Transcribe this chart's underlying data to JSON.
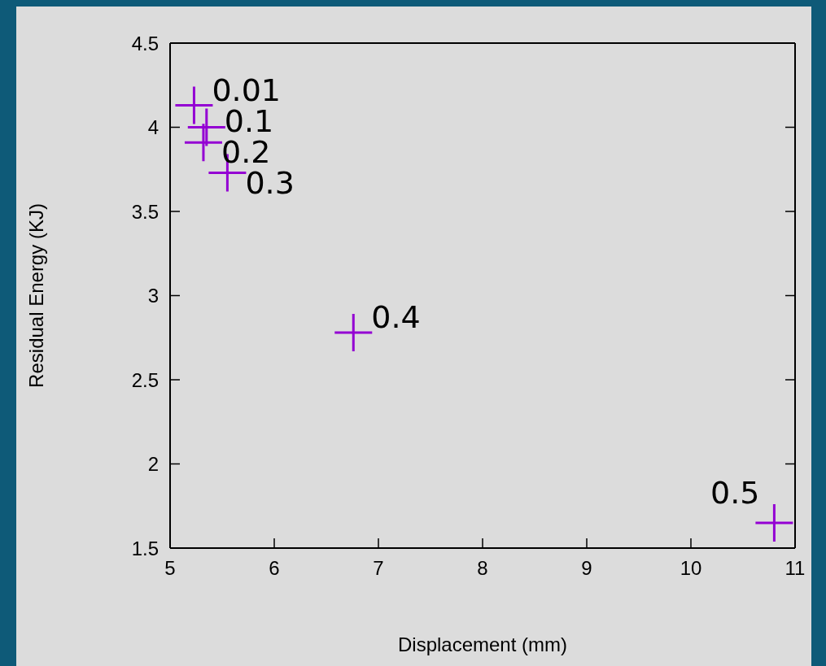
{
  "chart_data": {
    "type": "scatter",
    "xlabel": "Displacement (mm)",
    "ylabel": "Residual Energy (KJ)",
    "x": [
      5.23,
      5.35,
      5.32,
      5.55,
      6.76,
      10.8
    ],
    "values": [
      4.13,
      4.0,
      3.91,
      3.73,
      2.78,
      1.65
    ],
    "annotations": [
      {
        "text": "0.01",
        "x": 5.23,
        "y": 4.13
      },
      {
        "text": "0.1",
        "x": 5.35,
        "y": 4.0
      },
      {
        "text": "0.2",
        "x": 5.32,
        "y": 3.91
      },
      {
        "text": "0.3",
        "x": 5.55,
        "y": 3.73
      },
      {
        "text": "0.4",
        "x": 6.76,
        "y": 2.78
      },
      {
        "text": "0.5",
        "x": 10.8,
        "y": 1.65
      }
    ],
    "color": "#9400d3",
    "marker": "cross",
    "xlim": [
      5,
      11
    ],
    "xticks": [
      5,
      6,
      7,
      8,
      9,
      10,
      11
    ],
    "ylim": [
      1.5,
      4.5
    ],
    "yticks": [
      1.5,
      2,
      2.5,
      3,
      3.5,
      4,
      4.5
    ]
  }
}
